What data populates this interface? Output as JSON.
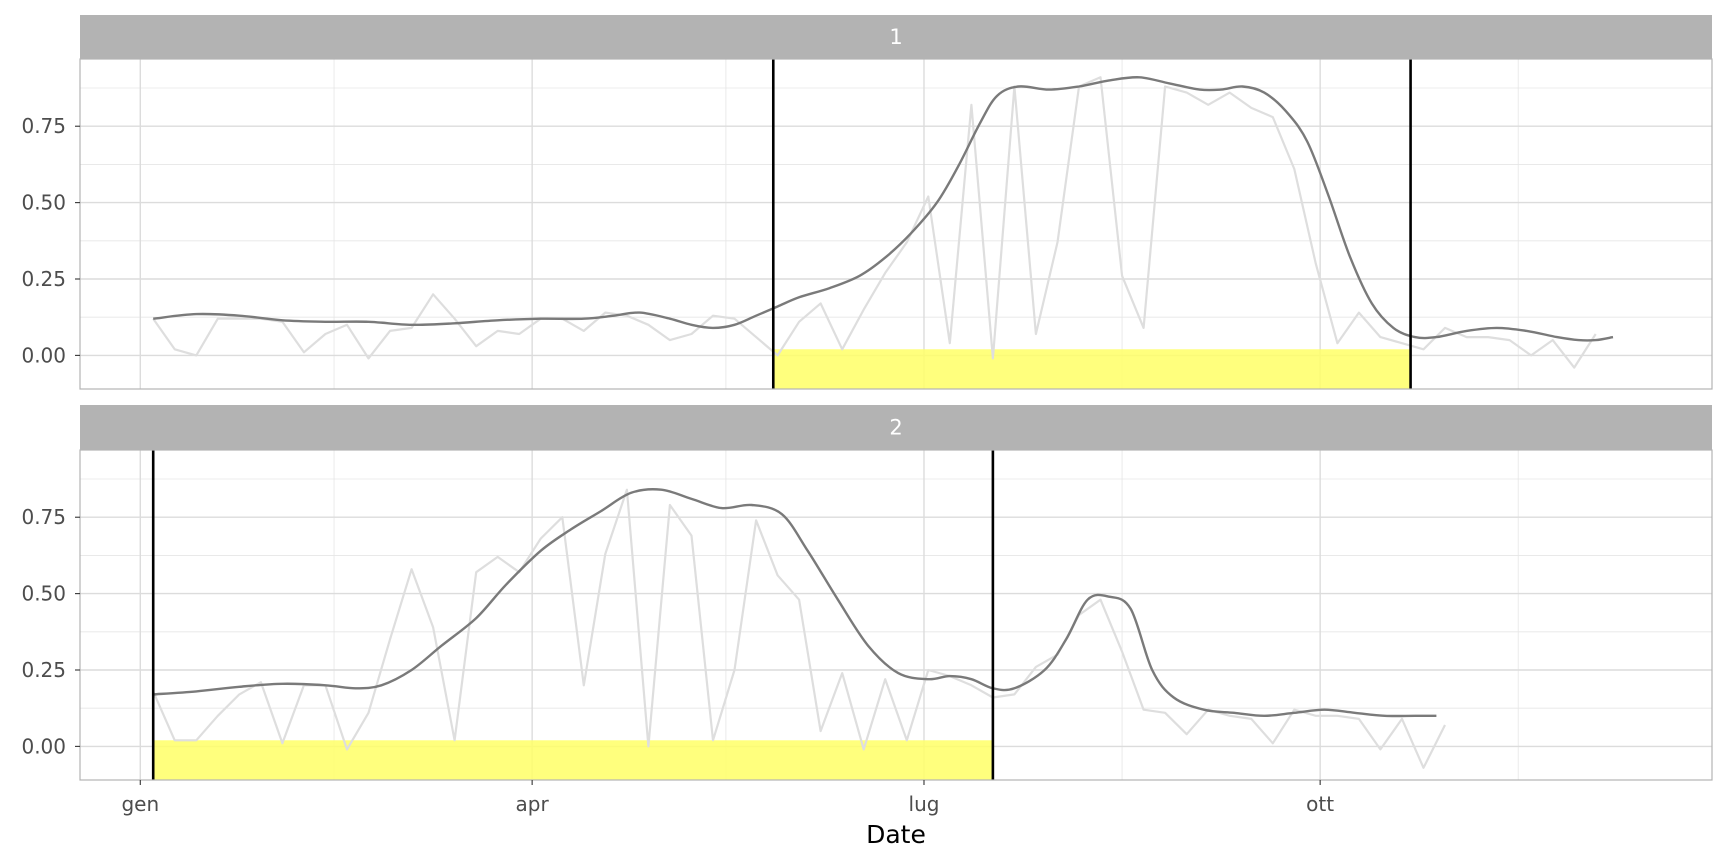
{
  "chart_data": {
    "type": "line",
    "xlabel": "Date",
    "ylabel": "",
    "xlim": [
      "2019-12-18",
      "2020-12-31"
    ],
    "ylim": [
      -0.11,
      0.97
    ],
    "x_ticks": [
      {
        "date": "2020-01-01",
        "label": "gen"
      },
      {
        "date": "2020-04-01",
        "label": "apr"
      },
      {
        "date": "2020-07-01",
        "label": "lug"
      },
      {
        "date": "2020-10-01",
        "label": "ott"
      }
    ],
    "y_ticks": [
      {
        "value": 0.0,
        "label": "0.00"
      },
      {
        "value": 0.25,
        "label": "0.25"
      },
      {
        "value": 0.5,
        "label": "0.50"
      },
      {
        "value": 0.75,
        "label": "0.75"
      }
    ],
    "grid": true,
    "colors": {
      "raw": "#dedede",
      "smooth": "#7a7a7a",
      "season_fill": "#ffff66",
      "season_line": "#000000",
      "strip": "#b3b3b3",
      "grid": "#e6e6e6"
    },
    "panels": [
      {
        "label": "1",
        "season": {
          "start": "2020-05-27",
          "end": "2020-10-22",
          "band_top": 0.02
        },
        "raw": [
          [
            "2020-01-04",
            0.12
          ],
          [
            "2020-01-09",
            0.02
          ],
          [
            "2020-01-14",
            0.0
          ],
          [
            "2020-01-19",
            0.12
          ],
          [
            "2020-01-24",
            0.12
          ],
          [
            "2020-01-29",
            0.12
          ],
          [
            "2020-02-03",
            0.11
          ],
          [
            "2020-02-08",
            0.01
          ],
          [
            "2020-02-13",
            0.07
          ],
          [
            "2020-02-18",
            0.1
          ],
          [
            "2020-02-23",
            -0.01
          ],
          [
            "2020-02-28",
            0.08
          ],
          [
            "2020-03-04",
            0.09
          ],
          [
            "2020-03-09",
            0.2
          ],
          [
            "2020-03-14",
            0.12
          ],
          [
            "2020-03-19",
            0.03
          ],
          [
            "2020-03-24",
            0.08
          ],
          [
            "2020-03-29",
            0.07
          ],
          [
            "2020-04-03",
            0.12
          ],
          [
            "2020-04-08",
            0.12
          ],
          [
            "2020-04-13",
            0.08
          ],
          [
            "2020-04-18",
            0.14
          ],
          [
            "2020-04-23",
            0.13
          ],
          [
            "2020-04-28",
            0.1
          ],
          [
            "2020-05-03",
            0.05
          ],
          [
            "2020-05-08",
            0.07
          ],
          [
            "2020-05-13",
            0.13
          ],
          [
            "2020-05-18",
            0.12
          ],
          [
            "2020-05-23",
            0.06
          ],
          [
            "2020-05-28",
            0.0
          ],
          [
            "2020-06-02",
            0.11
          ],
          [
            "2020-06-07",
            0.17
          ],
          [
            "2020-06-12",
            0.02
          ],
          [
            "2020-06-17",
            0.15
          ],
          [
            "2020-06-22",
            0.27
          ],
          [
            "2020-06-27",
            0.37
          ],
          [
            "2020-07-02",
            0.52
          ],
          [
            "2020-07-07",
            0.04
          ],
          [
            "2020-07-12",
            0.82
          ],
          [
            "2020-07-17",
            -0.01
          ],
          [
            "2020-07-22",
            0.88
          ],
          [
            "2020-07-27",
            0.07
          ],
          [
            "2020-08-01",
            0.37
          ],
          [
            "2020-08-06",
            0.88
          ],
          [
            "2020-08-11",
            0.91
          ],
          [
            "2020-08-16",
            0.26
          ],
          [
            "2020-08-21",
            0.09
          ],
          [
            "2020-08-26",
            0.88
          ],
          [
            "2020-08-31",
            0.86
          ],
          [
            "2020-09-05",
            0.82
          ],
          [
            "2020-09-10",
            0.86
          ],
          [
            "2020-09-15",
            0.81
          ],
          [
            "2020-09-20",
            0.78
          ],
          [
            "2020-09-25",
            0.61
          ],
          [
            "2020-09-30",
            0.3
          ],
          [
            "2020-10-05",
            0.04
          ],
          [
            "2020-10-10",
            0.14
          ],
          [
            "2020-10-15",
            0.06
          ],
          [
            "2020-10-20",
            0.04
          ],
          [
            "2020-10-25",
            0.02
          ],
          [
            "2020-10-30",
            0.09
          ],
          [
            "2020-11-04",
            0.06
          ],
          [
            "2020-11-09",
            0.06
          ],
          [
            "2020-11-14",
            0.05
          ],
          [
            "2020-11-19",
            0.0
          ],
          [
            "2020-11-24",
            0.05
          ],
          [
            "2020-11-29",
            -0.04
          ],
          [
            "2020-12-04",
            0.07
          ]
        ],
        "smooth": [
          [
            "2020-01-04",
            0.12
          ],
          [
            "2020-01-14",
            0.135
          ],
          [
            "2020-01-24",
            0.13
          ],
          [
            "2020-02-03",
            0.115
          ],
          [
            "2020-02-13",
            0.11
          ],
          [
            "2020-02-23",
            0.11
          ],
          [
            "2020-03-04",
            0.1
          ],
          [
            "2020-03-14",
            0.105
          ],
          [
            "2020-03-24",
            0.115
          ],
          [
            "2020-04-03",
            0.12
          ],
          [
            "2020-04-13",
            0.12
          ],
          [
            "2020-04-20",
            0.13
          ],
          [
            "2020-04-26",
            0.14
          ],
          [
            "2020-05-03",
            0.12
          ],
          [
            "2020-05-08",
            0.1
          ],
          [
            "2020-05-13",
            0.09
          ],
          [
            "2020-05-18",
            0.1
          ],
          [
            "2020-05-23",
            0.13
          ],
          [
            "2020-05-28",
            0.16
          ],
          [
            "2020-06-02",
            0.19
          ],
          [
            "2020-06-09",
            0.22
          ],
          [
            "2020-06-16",
            0.26
          ],
          [
            "2020-06-22",
            0.32
          ],
          [
            "2020-06-28",
            0.4
          ],
          [
            "2020-07-04",
            0.5
          ],
          [
            "2020-07-09",
            0.62
          ],
          [
            "2020-07-14",
            0.76
          ],
          [
            "2020-07-18",
            0.85
          ],
          [
            "2020-07-23",
            0.88
          ],
          [
            "2020-07-30",
            0.87
          ],
          [
            "2020-08-06",
            0.88
          ],
          [
            "2020-08-13",
            0.9
          ],
          [
            "2020-08-20",
            0.91
          ],
          [
            "2020-08-27",
            0.89
          ],
          [
            "2020-09-03",
            0.87
          ],
          [
            "2020-09-08",
            0.87
          ],
          [
            "2020-09-13",
            0.88
          ],
          [
            "2020-09-18",
            0.86
          ],
          [
            "2020-09-23",
            0.8
          ],
          [
            "2020-09-28",
            0.7
          ],
          [
            "2020-10-03",
            0.52
          ],
          [
            "2020-10-08",
            0.32
          ],
          [
            "2020-10-13",
            0.17
          ],
          [
            "2020-10-18",
            0.09
          ],
          [
            "2020-10-23",
            0.06
          ],
          [
            "2020-10-28",
            0.06
          ],
          [
            "2020-11-04",
            0.08
          ],
          [
            "2020-11-11",
            0.09
          ],
          [
            "2020-11-18",
            0.08
          ],
          [
            "2020-11-25",
            0.06
          ],
          [
            "2020-11-30",
            0.05
          ],
          [
            "2020-12-04",
            0.05
          ],
          [
            "2020-12-08",
            0.06
          ]
        ]
      },
      {
        "label": "2",
        "season": {
          "start": "2020-01-04",
          "end": "2020-07-17",
          "band_top": 0.02
        },
        "raw": [
          [
            "2020-01-04",
            0.18
          ],
          [
            "2020-01-09",
            0.02
          ],
          [
            "2020-01-14",
            0.02
          ],
          [
            "2020-01-19",
            0.1
          ],
          [
            "2020-01-24",
            0.17
          ],
          [
            "2020-01-29",
            0.21
          ],
          [
            "2020-02-03",
            0.01
          ],
          [
            "2020-02-08",
            0.2
          ],
          [
            "2020-02-13",
            0.2
          ],
          [
            "2020-02-18",
            -0.01
          ],
          [
            "2020-02-23",
            0.11
          ],
          [
            "2020-02-28",
            0.35
          ],
          [
            "2020-03-04",
            0.58
          ],
          [
            "2020-03-09",
            0.39
          ],
          [
            "2020-03-14",
            0.02
          ],
          [
            "2020-03-19",
            0.57
          ],
          [
            "2020-03-24",
            0.62
          ],
          [
            "2020-03-29",
            0.57
          ],
          [
            "2020-04-03",
            0.68
          ],
          [
            "2020-04-08",
            0.75
          ],
          [
            "2020-04-13",
            0.2
          ],
          [
            "2020-04-18",
            0.63
          ],
          [
            "2020-04-23",
            0.84
          ],
          [
            "2020-04-28",
            0.0
          ],
          [
            "2020-05-03",
            0.79
          ],
          [
            "2020-05-08",
            0.69
          ],
          [
            "2020-05-13",
            0.02
          ],
          [
            "2020-05-18",
            0.25
          ],
          [
            "2020-05-23",
            0.74
          ],
          [
            "2020-05-28",
            0.56
          ],
          [
            "2020-06-02",
            0.48
          ],
          [
            "2020-06-07",
            0.05
          ],
          [
            "2020-06-12",
            0.24
          ],
          [
            "2020-06-17",
            -0.01
          ],
          [
            "2020-06-22",
            0.22
          ],
          [
            "2020-06-27",
            0.02
          ],
          [
            "2020-07-02",
            0.25
          ],
          [
            "2020-07-07",
            0.23
          ],
          [
            "2020-07-12",
            0.2
          ],
          [
            "2020-07-17",
            0.16
          ],
          [
            "2020-07-22",
            0.17
          ],
          [
            "2020-07-27",
            0.26
          ],
          [
            "2020-08-01",
            0.3
          ],
          [
            "2020-08-06",
            0.43
          ],
          [
            "2020-08-11",
            0.48
          ],
          [
            "2020-08-16",
            0.31
          ],
          [
            "2020-08-21",
            0.12
          ],
          [
            "2020-08-26",
            0.11
          ],
          [
            "2020-08-31",
            0.04
          ],
          [
            "2020-09-05",
            0.12
          ],
          [
            "2020-09-10",
            0.1
          ],
          [
            "2020-09-15",
            0.09
          ],
          [
            "2020-09-20",
            0.01
          ],
          [
            "2020-09-25",
            0.12
          ],
          [
            "2020-09-30",
            0.1
          ],
          [
            "2020-10-05",
            0.1
          ],
          [
            "2020-10-10",
            0.09
          ],
          [
            "2020-10-15",
            -0.01
          ],
          [
            "2020-10-20",
            0.09
          ],
          [
            "2020-10-25",
            -0.07
          ],
          [
            "2020-10-30",
            0.07
          ]
        ],
        "smooth": [
          [
            "2020-01-04",
            0.17
          ],
          [
            "2020-01-14",
            0.18
          ],
          [
            "2020-01-24",
            0.195
          ],
          [
            "2020-02-03",
            0.205
          ],
          [
            "2020-02-13",
            0.2
          ],
          [
            "2020-02-20",
            0.19
          ],
          [
            "2020-02-26",
            0.2
          ],
          [
            "2020-03-04",
            0.25
          ],
          [
            "2020-03-11",
            0.33
          ],
          [
            "2020-03-19",
            0.42
          ],
          [
            "2020-03-26",
            0.53
          ],
          [
            "2020-04-03",
            0.64
          ],
          [
            "2020-04-10",
            0.71
          ],
          [
            "2020-04-17",
            0.77
          ],
          [
            "2020-04-24",
            0.83
          ],
          [
            "2020-05-01",
            0.84
          ],
          [
            "2020-05-08",
            0.81
          ],
          [
            "2020-05-15",
            0.78
          ],
          [
            "2020-05-22",
            0.79
          ],
          [
            "2020-05-29",
            0.76
          ],
          [
            "2020-06-04",
            0.64
          ],
          [
            "2020-06-11",
            0.48
          ],
          [
            "2020-06-18",
            0.33
          ],
          [
            "2020-06-25",
            0.24
          ],
          [
            "2020-07-02",
            0.22
          ],
          [
            "2020-07-07",
            0.23
          ],
          [
            "2020-07-12",
            0.22
          ],
          [
            "2020-07-17",
            0.19
          ],
          [
            "2020-07-22",
            0.19
          ],
          [
            "2020-07-29",
            0.25
          ],
          [
            "2020-08-03",
            0.35
          ],
          [
            "2020-08-08",
            0.48
          ],
          [
            "2020-08-13",
            0.49
          ],
          [
            "2020-08-18",
            0.45
          ],
          [
            "2020-08-23",
            0.25
          ],
          [
            "2020-08-28",
            0.16
          ],
          [
            "2020-09-04",
            0.12
          ],
          [
            "2020-09-11",
            0.11
          ],
          [
            "2020-09-18",
            0.1
          ],
          [
            "2020-09-25",
            0.11
          ],
          [
            "2020-10-02",
            0.12
          ],
          [
            "2020-10-09",
            0.11
          ],
          [
            "2020-10-16",
            0.1
          ],
          [
            "2020-10-23",
            0.1
          ],
          [
            "2020-10-28",
            0.1
          ]
        ]
      }
    ]
  }
}
